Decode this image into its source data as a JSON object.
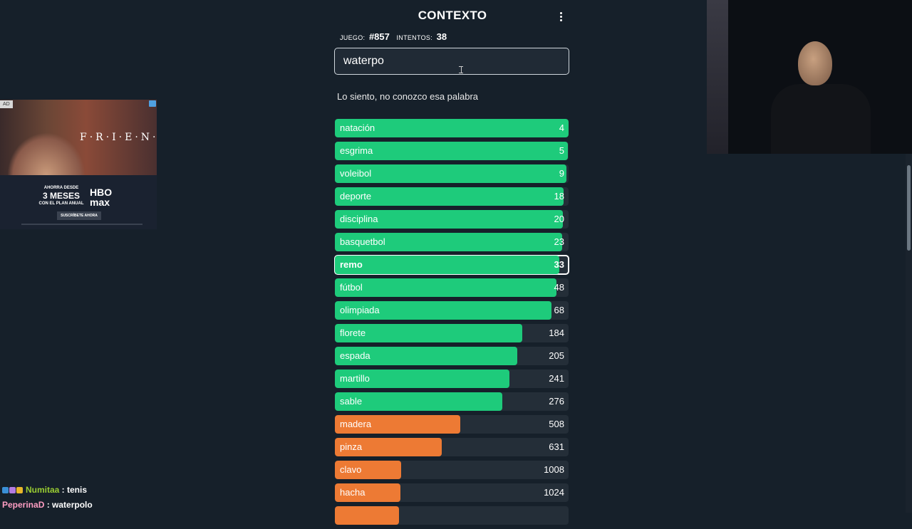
{
  "app": {
    "title": "CONTEXTO"
  },
  "stats": {
    "game_label": "JUEGO:",
    "game_value": "#857",
    "attempts_label": "INTENTOS:",
    "attempts_value": "38"
  },
  "input": {
    "value": "waterpo"
  },
  "message": "Lo siento, no conozco esa palabra",
  "colors": {
    "green": "#1ecb7b",
    "orange": "#ed7a34",
    "track": "#242e38"
  },
  "guesses": [
    {
      "word": "natación",
      "rank": "4",
      "color": "green",
      "fill_pct": 100
    },
    {
      "word": "esgrima",
      "rank": "5",
      "color": "green",
      "fill_pct": 99.7
    },
    {
      "word": "voleibol",
      "rank": "9",
      "color": "green",
      "fill_pct": 99
    },
    {
      "word": "deporte",
      "rank": "18",
      "color": "green",
      "fill_pct": 98
    },
    {
      "word": "disciplina",
      "rank": "20",
      "color": "green",
      "fill_pct": 97.6
    },
    {
      "word": "basquetbol",
      "rank": "23",
      "color": "green",
      "fill_pct": 97.3
    },
    {
      "word": "remo",
      "rank": "33",
      "color": "green",
      "fill_pct": 96,
      "current": true
    },
    {
      "word": "fútbol",
      "rank": "48",
      "color": "green",
      "fill_pct": 94.8
    },
    {
      "word": "olimpiada",
      "rank": "68",
      "color": "green",
      "fill_pct": 92.7
    },
    {
      "word": "florete",
      "rank": "184",
      "color": "green",
      "fill_pct": 80.2
    },
    {
      "word": "espada",
      "rank": "205",
      "color": "green",
      "fill_pct": 78.2
    },
    {
      "word": "martillo",
      "rank": "241",
      "color": "green",
      "fill_pct": 74.7
    },
    {
      "word": "sable",
      "rank": "276",
      "color": "green",
      "fill_pct": 71.6
    },
    {
      "word": "madera",
      "rank": "508",
      "color": "orange",
      "fill_pct": 53.7
    },
    {
      "word": "pinza",
      "rank": "631",
      "color": "orange",
      "fill_pct": 45.7
    },
    {
      "word": "clavo",
      "rank": "1008",
      "color": "orange",
      "fill_pct": 28.4
    },
    {
      "word": "hacha",
      "rank": "1024",
      "color": "orange",
      "fill_pct": 28.1
    },
    {
      "word": "",
      "rank": "",
      "color": "orange",
      "fill_pct": 27.4
    }
  ],
  "ad": {
    "tag": "AD",
    "brand": "F·R·I·E·N·D·S",
    "promo_top": "AHORRA DESDE",
    "promo_big": "3 MESES",
    "promo_bottom": "CON EL PLAN ANUAL",
    "hbo_1": "HBO",
    "hbo_2": "max",
    "cta": "SUSCRÍBETE AHORA"
  },
  "chat": [
    {
      "user": "Numitaa",
      "text": " : tenis",
      "color": "#9acd32",
      "badges": [
        "#3a8fd6",
        "#b37be0",
        "#e8b62a"
      ]
    },
    {
      "user": "PeperinaD",
      "text": " : waterpolo",
      "color": "#ff9ec3",
      "badges": []
    }
  ]
}
